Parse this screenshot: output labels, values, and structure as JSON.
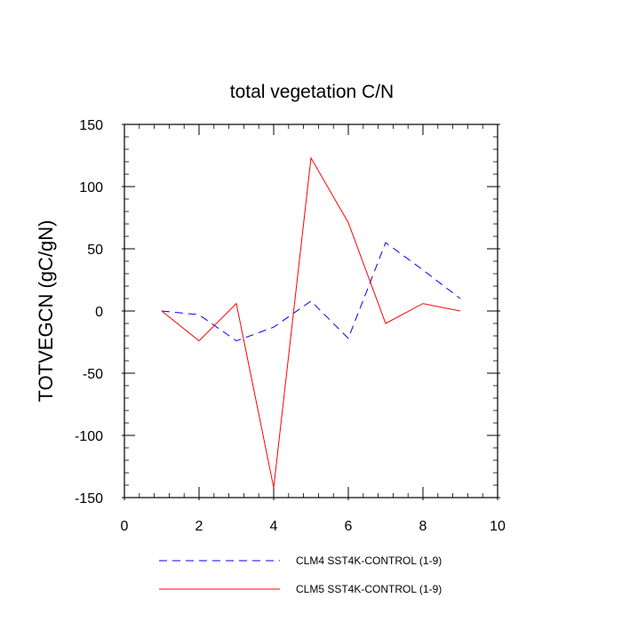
{
  "chart_data": {
    "type": "line",
    "title": "total vegetation C/N",
    "xlabel": "",
    "ylabel": "TOTVEGCN  (gC/gN)",
    "xlim": [
      0,
      10
    ],
    "ylim": [
      -150,
      150
    ],
    "x_ticks": [
      0,
      2,
      4,
      6,
      8,
      10
    ],
    "y_ticks": [
      150,
      100,
      50,
      0,
      -50,
      -100,
      -150
    ],
    "grid": false,
    "legend_position": "bottom",
    "x": [
      1,
      2,
      3,
      4,
      5,
      6,
      7,
      8,
      9
    ],
    "series": [
      {
        "name": "CLM4 SST4K-CONTROL (1-9)",
        "color": "#0000ff",
        "dash": "dashed",
        "values": [
          0,
          -3,
          -24,
          -13,
          8,
          -22,
          55,
          33,
          10
        ]
      },
      {
        "name": "CLM5 SST4K-CONTROL (1-9)",
        "color": "#ff0000",
        "dash": "solid",
        "values": [
          0,
          -24,
          6,
          -142,
          123,
          71,
          -10,
          6,
          0
        ]
      }
    ]
  }
}
